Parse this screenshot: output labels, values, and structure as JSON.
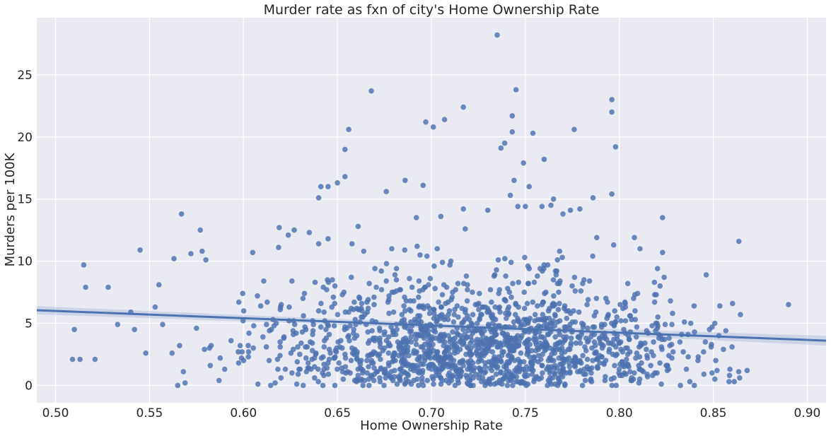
{
  "chart_data": {
    "type": "scatter",
    "title": "Murder rate as fxn of city's Home Ownership Rate",
    "xlabel": "Home Ownership Rate",
    "ylabel": "Murders per 100K",
    "xlim": [
      0.49,
      0.91
    ],
    "ylim": [
      -1.4,
      29.6
    ],
    "xticks": [
      0.5,
      0.55,
      0.6,
      0.65,
      0.7,
      0.75,
      0.8,
      0.85,
      0.9
    ],
    "xtick_labels": [
      "0.50",
      "0.55",
      "0.60",
      "0.65",
      "0.70",
      "0.75",
      "0.80",
      "0.85",
      "0.90"
    ],
    "yticks": [
      0,
      5,
      10,
      15,
      20,
      25
    ],
    "ytick_labels": [
      "0",
      "5",
      "10",
      "15",
      "20",
      "25"
    ],
    "grid": true,
    "regression": {
      "x": [
        0.49,
        0.91
      ],
      "y": [
        6.05,
        3.6
      ]
    },
    "colors": {
      "points": "#4c72b0",
      "line": "#4c72b0",
      "background": "#eaeaf2",
      "grid": "#ffffff"
    },
    "generated_points": {
      "count": 1600,
      "seed": 12345
    },
    "points": [
      [
        0.735,
        28.2
      ],
      [
        0.668,
        23.7
      ],
      [
        0.745,
        23.8
      ],
      [
        0.717,
        22.4
      ],
      [
        0.796,
        23.0
      ],
      [
        0.796,
        22.0
      ],
      [
        0.743,
        21.7
      ],
      [
        0.707,
        21.4
      ],
      [
        0.697,
        21.2
      ],
      [
        0.701,
        20.8
      ],
      [
        0.656,
        20.6
      ],
      [
        0.743,
        20.4
      ],
      [
        0.754,
        20.3
      ],
      [
        0.776,
        20.6
      ],
      [
        0.739,
        19.5
      ],
      [
        0.737,
        19.1
      ],
      [
        0.654,
        19.0
      ],
      [
        0.798,
        19.2
      ],
      [
        0.76,
        18.2
      ],
      [
        0.749,
        17.9
      ],
      [
        0.654,
        16.8
      ],
      [
        0.65,
        16.3
      ],
      [
        0.744,
        16.5
      ],
      [
        0.686,
        16.5
      ],
      [
        0.645,
        16.0
      ],
      [
        0.752,
        16.0
      ],
      [
        0.676,
        15.6
      ],
      [
        0.64,
        15.1
      ],
      [
        0.786,
        15.1
      ],
      [
        0.796,
        15.4
      ],
      [
        0.742,
        15.3
      ],
      [
        0.765,
        15.0
      ],
      [
        0.823,
        13.5
      ],
      [
        0.567,
        13.8
      ],
      [
        0.77,
        13.8
      ],
      [
        0.717,
        14.2
      ],
      [
        0.73,
        14.1
      ],
      [
        0.746,
        14.4
      ],
      [
        0.75,
        14.4
      ],
      [
        0.779,
        14.2
      ],
      [
        0.692,
        13.5
      ],
      [
        0.705,
        13.6
      ],
      [
        0.515,
        9.7
      ],
      [
        0.516,
        7.9
      ],
      [
        0.528,
        7.9
      ],
      [
        0.545,
        10.9
      ],
      [
        0.577,
        12.5
      ],
      [
        0.563,
        10.2
      ],
      [
        0.572,
        10.6
      ],
      [
        0.578,
        10.8
      ],
      [
        0.58,
        10.1
      ],
      [
        0.619,
        12.7
      ],
      [
        0.627,
        12.5
      ],
      [
        0.635,
        12.3
      ],
      [
        0.64,
        11.4
      ],
      [
        0.645,
        11.8
      ],
      [
        0.661,
        12.8
      ],
      [
        0.664,
        10.8
      ],
      [
        0.808,
        11.9
      ],
      [
        0.811,
        11.0
      ],
      [
        0.823,
        10.7
      ],
      [
        0.797,
        11.3
      ],
      [
        0.89,
        6.5
      ],
      [
        0.509,
        2.1
      ],
      [
        0.513,
        2.1
      ],
      [
        0.521,
        2.1
      ],
      [
        0.51,
        4.5
      ],
      [
        0.533,
        4.9
      ],
      [
        0.54,
        5.9
      ],
      [
        0.542,
        4.5
      ],
      [
        0.548,
        2.6
      ],
      [
        0.553,
        6.3
      ],
      [
        0.555,
        8.1
      ],
      [
        0.557,
        4.9
      ],
      [
        0.565,
        0.0
      ],
      [
        0.566,
        3.2
      ],
      [
        0.568,
        1.1
      ],
      [
        0.562,
        2.6
      ],
      [
        0.864,
        0.6
      ],
      [
        0.868,
        1.2
      ],
      [
        0.86,
        3.1
      ],
      [
        0.849,
        3.3
      ],
      [
        0.852,
        1.2
      ],
      [
        0.845,
        0.9
      ],
      [
        0.842,
        2.3
      ],
      [
        0.838,
        5.0
      ],
      [
        0.84,
        4.3
      ],
      [
        0.828,
        4.9
      ],
      [
        0.824,
        3.7
      ],
      [
        0.834,
        2.7
      ]
    ]
  }
}
